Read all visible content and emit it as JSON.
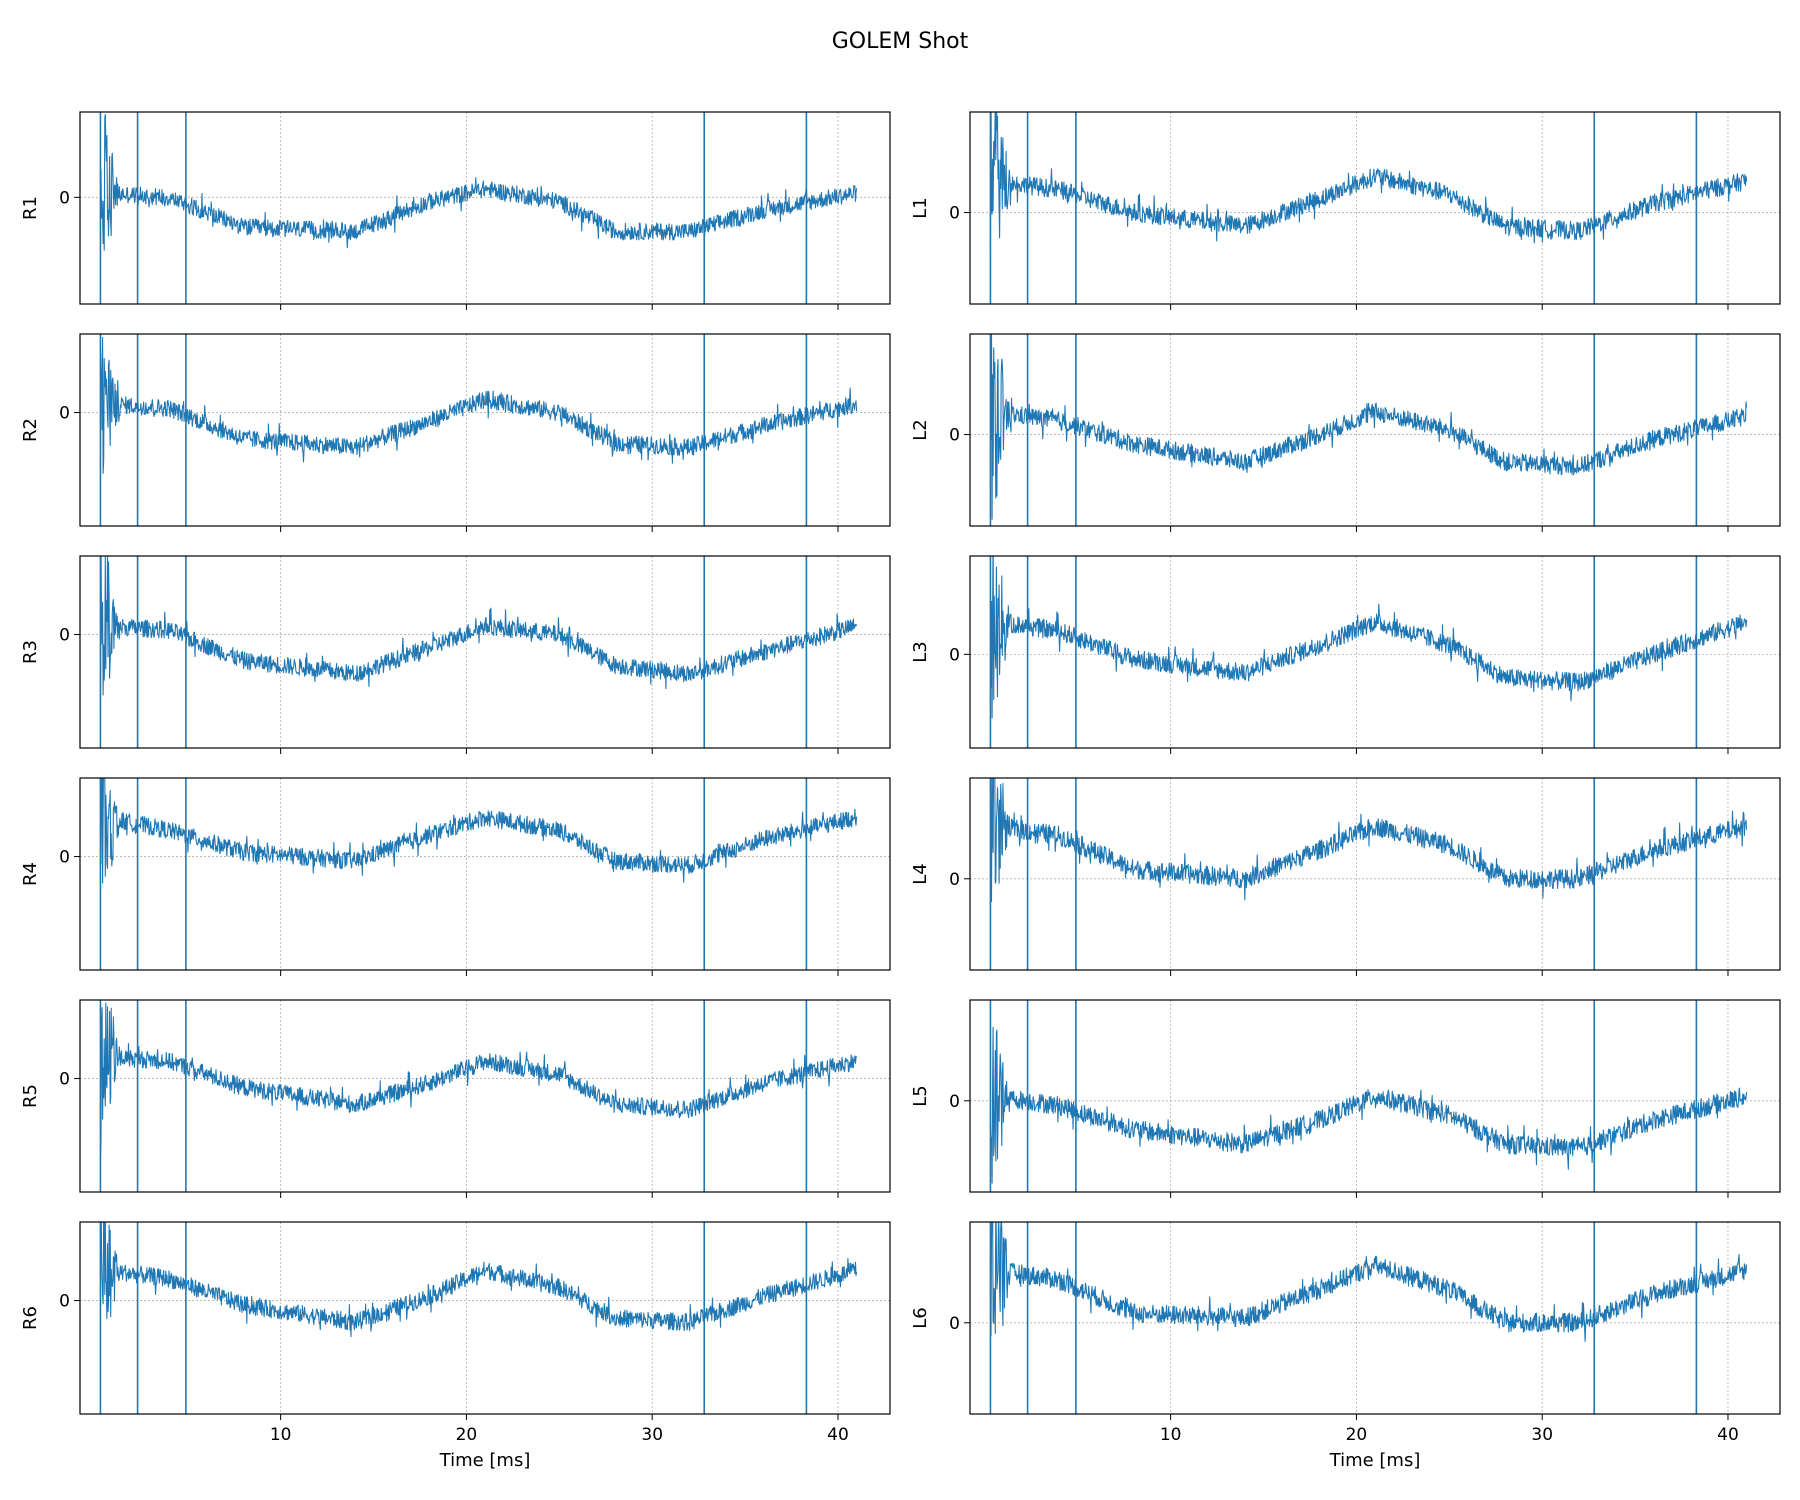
{
  "figure": {
    "title": "GOLEM Shot"
  },
  "chart_data": {
    "type": "line",
    "layout": "6 rows x 2 columns, shared x axis per column",
    "color": "#1f77b4",
    "xlabel": "Time [ms]",
    "xlim": [
      -0.8,
      42.8
    ],
    "xticks": [
      10,
      20,
      30,
      40
    ],
    "x_range_data": [
      0.3,
      41.0
    ],
    "event_lines_x": [
      0.3,
      2.3,
      4.9,
      32.8,
      38.3
    ],
    "grid": true,
    "columns": [
      {
        "panels": [
          {
            "ylabel": "R1",
            "yticks": [
              0
            ],
            "ylim": [
              -1.25,
              1.0
            ],
            "baseline": 0,
            "noise": 0.1,
            "x": [
              0.5,
              4,
              8,
              14,
              18,
              21,
              25,
              28,
              32,
              36,
              41
            ],
            "y": [
              0.05,
              0.0,
              -0.35,
              -0.4,
              -0.05,
              0.1,
              -0.05,
              -0.4,
              -0.4,
              -0.15,
              0.05
            ]
          },
          {
            "ylabel": "R2",
            "yticks": [
              0
            ],
            "ylim": [
              -1.3,
              0.9
            ],
            "baseline": 0,
            "noise": 0.1,
            "x": [
              0.5,
              4,
              8,
              14,
              18,
              21,
              25,
              28,
              32,
              36,
              41
            ],
            "y": [
              0.1,
              0.05,
              -0.3,
              -0.4,
              -0.1,
              0.15,
              0.0,
              -0.35,
              -0.4,
              -0.15,
              0.1
            ]
          },
          {
            "ylabel": "R3",
            "yticks": [
              0
            ],
            "ylim": [
              -1.3,
              0.9
            ],
            "baseline": 0,
            "noise": 0.1,
            "x": [
              0.5,
              4,
              8,
              14,
              18,
              21,
              25,
              28,
              32,
              36,
              41
            ],
            "y": [
              0.1,
              0.05,
              -0.3,
              -0.45,
              -0.15,
              0.1,
              0.0,
              -0.35,
              -0.45,
              -0.2,
              0.1
            ]
          },
          {
            "ylabel": "R4",
            "yticks": [
              0
            ],
            "ylim": [
              -1.3,
              0.9
            ],
            "baseline": 0,
            "noise": 0.1,
            "x": [
              0.5,
              4,
              8,
              14,
              18,
              21,
              25,
              28,
              32,
              36,
              41
            ],
            "y": [
              0.45,
              0.3,
              0.05,
              -0.05,
              0.25,
              0.45,
              0.3,
              -0.05,
              -0.1,
              0.2,
              0.45
            ]
          },
          {
            "ylabel": "R5",
            "yticks": [
              0
            ],
            "ylim": [
              -1.3,
              0.9
            ],
            "baseline": 0,
            "noise": 0.1,
            "x": [
              0.5,
              4,
              8,
              14,
              18,
              21,
              25,
              28,
              32,
              36,
              41
            ],
            "y": [
              0.25,
              0.2,
              -0.1,
              -0.3,
              -0.05,
              0.2,
              0.05,
              -0.3,
              -0.35,
              -0.05,
              0.2
            ]
          },
          {
            "ylabel": "R6",
            "yticks": [
              0
            ],
            "ylim": [
              -1.3,
              0.9
            ],
            "baseline": 0,
            "noise": 0.1,
            "x": [
              0.5,
              4,
              8,
              14,
              18,
              21,
              25,
              28,
              32,
              36,
              41
            ],
            "y": [
              0.35,
              0.25,
              -0.05,
              -0.25,
              0.05,
              0.35,
              0.15,
              -0.2,
              -0.25,
              0.05,
              0.35
            ]
          }
        ]
      },
      {
        "panels": [
          {
            "ylabel": "L1",
            "yticks": [
              0
            ],
            "ylim": [
              -1.0,
              1.1
            ],
            "baseline": 0,
            "noise": 0.1,
            "x": [
              0.5,
              4,
              8,
              14,
              18,
              21,
              25,
              28,
              32,
              36,
              41
            ],
            "y": [
              0.35,
              0.25,
              0.0,
              -0.15,
              0.15,
              0.4,
              0.2,
              -0.15,
              -0.2,
              0.1,
              0.35
            ]
          },
          {
            "ylabel": "L2",
            "yticks": [
              0
            ],
            "ylim": [
              -1.0,
              1.1
            ],
            "baseline": 0,
            "noise": 0.1,
            "x": [
              0.5,
              4,
              8,
              14,
              18,
              21,
              25,
              28,
              32,
              36,
              41
            ],
            "y": [
              0.25,
              0.15,
              -0.1,
              -0.3,
              0.0,
              0.25,
              0.05,
              -0.3,
              -0.35,
              -0.05,
              0.2
            ]
          },
          {
            "ylabel": "L3",
            "yticks": [
              0
            ],
            "ylim": [
              -1.0,
              1.05
            ],
            "baseline": 0,
            "noise": 0.1,
            "x": [
              0.5,
              4,
              8,
              14,
              18,
              21,
              25,
              28,
              32,
              36,
              41
            ],
            "y": [
              0.35,
              0.25,
              -0.05,
              -0.2,
              0.1,
              0.35,
              0.1,
              -0.25,
              -0.3,
              0.0,
              0.35
            ]
          },
          {
            "ylabel": "L4",
            "yticks": [
              0
            ],
            "ylim": [
              -0.95,
              1.05
            ],
            "baseline": 0,
            "noise": 0.1,
            "x": [
              0.5,
              4,
              8,
              14,
              18,
              21,
              25,
              28,
              32,
              36,
              41
            ],
            "y": [
              0.55,
              0.45,
              0.1,
              0.0,
              0.3,
              0.55,
              0.35,
              0.0,
              0.0,
              0.3,
              0.55
            ]
          },
          {
            "ylabel": "L5",
            "yticks": [
              0
            ],
            "ylim": [
              -0.95,
              1.05
            ],
            "baseline": 0,
            "noise": 0.1,
            "x": [
              0.5,
              4,
              8,
              14,
              18,
              21,
              25,
              28,
              32,
              36,
              41
            ],
            "y": [
              0.05,
              -0.05,
              -0.3,
              -0.45,
              -0.2,
              0.05,
              -0.15,
              -0.45,
              -0.5,
              -0.2,
              0.05
            ]
          },
          {
            "ylabel": "L6",
            "yticks": [
              0
            ],
            "ylim": [
              -0.95,
              1.05
            ],
            "baseline": 0,
            "noise": 0.1,
            "x": [
              0.5,
              4,
              8,
              14,
              18,
              21,
              25,
              28,
              32,
              36,
              41
            ],
            "y": [
              0.55,
              0.45,
              0.1,
              0.05,
              0.35,
              0.6,
              0.35,
              0.0,
              0.0,
              0.3,
              0.55
            ]
          }
        ]
      }
    ]
  }
}
